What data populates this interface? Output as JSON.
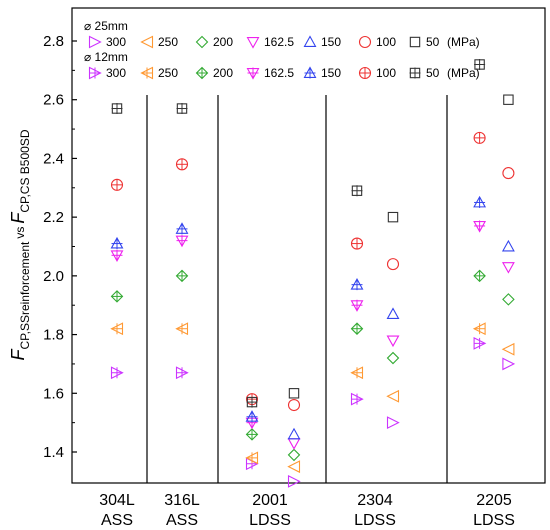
{
  "chart_data": {
    "type": "scatter",
    "ylabel": "F_CP,SSreinforcement vs F_CP,CS B500SD",
    "ylabel_parts": {
      "main1": "F",
      "sub1": "CP,SSreinforcement",
      "vs": "vs",
      "main2": "F",
      "sub2": "CP,CS B500SD"
    },
    "ylim": [
      1.3,
      2.85
    ],
    "yticks": [
      "1.4",
      "1.6",
      "1.8",
      "2.0",
      "2.2",
      "2.4",
      "2.6",
      "2.8"
    ],
    "categories": [
      {
        "line1": "304L",
        "line2": "ASS"
      },
      {
        "line1": "316L",
        "line2": "ASS"
      },
      {
        "line1": "2001",
        "line2": "LDSS"
      },
      {
        "line1": "2304",
        "line2": "LDSS"
      },
      {
        "line1": "2205",
        "line2": "LDSS"
      }
    ],
    "legend": {
      "group_25": "⌀ 25mm",
      "group_12": "⌀ 12mm",
      "unit": "(MPa)",
      "stress_labels": [
        "300",
        "250",
        "200",
        "162.5",
        "150",
        "100",
        "50"
      ]
    },
    "colors": {
      "300": "#cc33ff",
      "250": "#ff9933",
      "200": "#33aa33",
      "162.5": "#ee22ee",
      "150": "#3344ee",
      "100": "#ee3333",
      "50": "#333333"
    },
    "series": [
      {
        "diameter": "25mm",
        "points": [
          {
            "cat": 4,
            "off": 0.12,
            "y": 1.7,
            "stress": "300"
          },
          {
            "cat": 4,
            "off": 0.12,
            "y": 1.75,
            "stress": "250"
          },
          {
            "cat": 4,
            "off": 0.12,
            "y": 1.92,
            "stress": "200"
          },
          {
            "cat": 4,
            "off": 0.12,
            "y": 2.03,
            "stress": "162.5"
          },
          {
            "cat": 4,
            "off": 0.12,
            "y": 2.1,
            "stress": "150"
          },
          {
            "cat": 4,
            "off": 0.12,
            "y": 2.35,
            "stress": "100"
          },
          {
            "cat": 4,
            "off": 0.12,
            "y": 2.6,
            "stress": "50"
          },
          {
            "cat": 3,
            "off": 0.15,
            "y": 1.5,
            "stress": "300"
          },
          {
            "cat": 3,
            "off": 0.15,
            "y": 1.59,
            "stress": "250"
          },
          {
            "cat": 3,
            "off": 0.15,
            "y": 1.72,
            "stress": "200"
          },
          {
            "cat": 3,
            "off": 0.15,
            "y": 1.78,
            "stress": "162.5"
          },
          {
            "cat": 3,
            "off": 0.15,
            "y": 1.87,
            "stress": "150"
          },
          {
            "cat": 3,
            "off": 0.15,
            "y": 2.04,
            "stress": "100"
          },
          {
            "cat": 3,
            "off": 0.15,
            "y": 2.2,
            "stress": "50"
          },
          {
            "cat": 2,
            "off": 0.2,
            "y": 1.3,
            "stress": "300"
          },
          {
            "cat": 2,
            "off": 0.2,
            "y": 1.35,
            "stress": "250"
          },
          {
            "cat": 2,
            "off": 0.2,
            "y": 1.39,
            "stress": "200"
          },
          {
            "cat": 2,
            "off": 0.2,
            "y": 1.43,
            "stress": "162.5"
          },
          {
            "cat": 2,
            "off": 0.2,
            "y": 1.46,
            "stress": "150"
          },
          {
            "cat": 2,
            "off": 0.2,
            "y": 1.56,
            "stress": "100"
          },
          {
            "cat": 2,
            "off": 0.2,
            "y": 1.6,
            "stress": "50"
          }
        ]
      },
      {
        "diameter": "12mm",
        "points": [
          {
            "cat": 0,
            "off": 0,
            "y": 1.67,
            "stress": "300"
          },
          {
            "cat": 0,
            "off": 0,
            "y": 1.82,
            "stress": "250"
          },
          {
            "cat": 0,
            "off": 0,
            "y": 1.93,
            "stress": "200"
          },
          {
            "cat": 0,
            "off": 0,
            "y": 2.07,
            "stress": "162.5"
          },
          {
            "cat": 0,
            "off": 0,
            "y": 2.11,
            "stress": "150"
          },
          {
            "cat": 0,
            "off": 0,
            "y": 2.31,
            "stress": "100"
          },
          {
            "cat": 0,
            "off": 0,
            "y": 2.57,
            "stress": "50"
          },
          {
            "cat": 1,
            "off": 0,
            "y": 1.67,
            "stress": "300"
          },
          {
            "cat": 1,
            "off": 0,
            "y": 1.82,
            "stress": "250"
          },
          {
            "cat": 1,
            "off": 0,
            "y": 2.0,
            "stress": "200"
          },
          {
            "cat": 1,
            "off": 0,
            "y": 2.12,
            "stress": "162.5"
          },
          {
            "cat": 1,
            "off": 0,
            "y": 2.16,
            "stress": "150"
          },
          {
            "cat": 1,
            "off": 0,
            "y": 2.38,
            "stress": "100"
          },
          {
            "cat": 1,
            "off": 0,
            "y": 2.57,
            "stress": "50"
          },
          {
            "cat": 2,
            "off": -0.15,
            "y": 1.36,
            "stress": "300"
          },
          {
            "cat": 2,
            "off": -0.15,
            "y": 1.38,
            "stress": "250"
          },
          {
            "cat": 2,
            "off": -0.15,
            "y": 1.46,
            "stress": "200"
          },
          {
            "cat": 2,
            "off": -0.15,
            "y": 1.5,
            "stress": "162.5"
          },
          {
            "cat": 2,
            "off": -0.15,
            "y": 1.52,
            "stress": "150"
          },
          {
            "cat": 2,
            "off": -0.15,
            "y": 1.58,
            "stress": "100"
          },
          {
            "cat": 2,
            "off": -0.15,
            "y": 1.57,
            "stress": "50"
          },
          {
            "cat": 3,
            "off": -0.15,
            "y": 1.58,
            "stress": "300"
          },
          {
            "cat": 3,
            "off": -0.15,
            "y": 1.67,
            "stress": "250"
          },
          {
            "cat": 3,
            "off": -0.15,
            "y": 1.82,
            "stress": "200"
          },
          {
            "cat": 3,
            "off": -0.15,
            "y": 1.9,
            "stress": "162.5"
          },
          {
            "cat": 3,
            "off": -0.15,
            "y": 1.97,
            "stress": "150"
          },
          {
            "cat": 3,
            "off": -0.15,
            "y": 2.11,
            "stress": "100"
          },
          {
            "cat": 3,
            "off": -0.15,
            "y": 2.29,
            "stress": "50"
          },
          {
            "cat": 4,
            "off": -0.12,
            "y": 1.77,
            "stress": "300"
          },
          {
            "cat": 4,
            "off": -0.12,
            "y": 1.82,
            "stress": "250"
          },
          {
            "cat": 4,
            "off": -0.12,
            "y": 2.0,
            "stress": "200"
          },
          {
            "cat": 4,
            "off": -0.12,
            "y": 2.17,
            "stress": "162.5"
          },
          {
            "cat": 4,
            "off": -0.12,
            "y": 2.25,
            "stress": "150"
          },
          {
            "cat": 4,
            "off": -0.12,
            "y": 2.47,
            "stress": "100"
          },
          {
            "cat": 4,
            "off": -0.12,
            "y": 2.72,
            "stress": "50"
          }
        ]
      }
    ]
  }
}
